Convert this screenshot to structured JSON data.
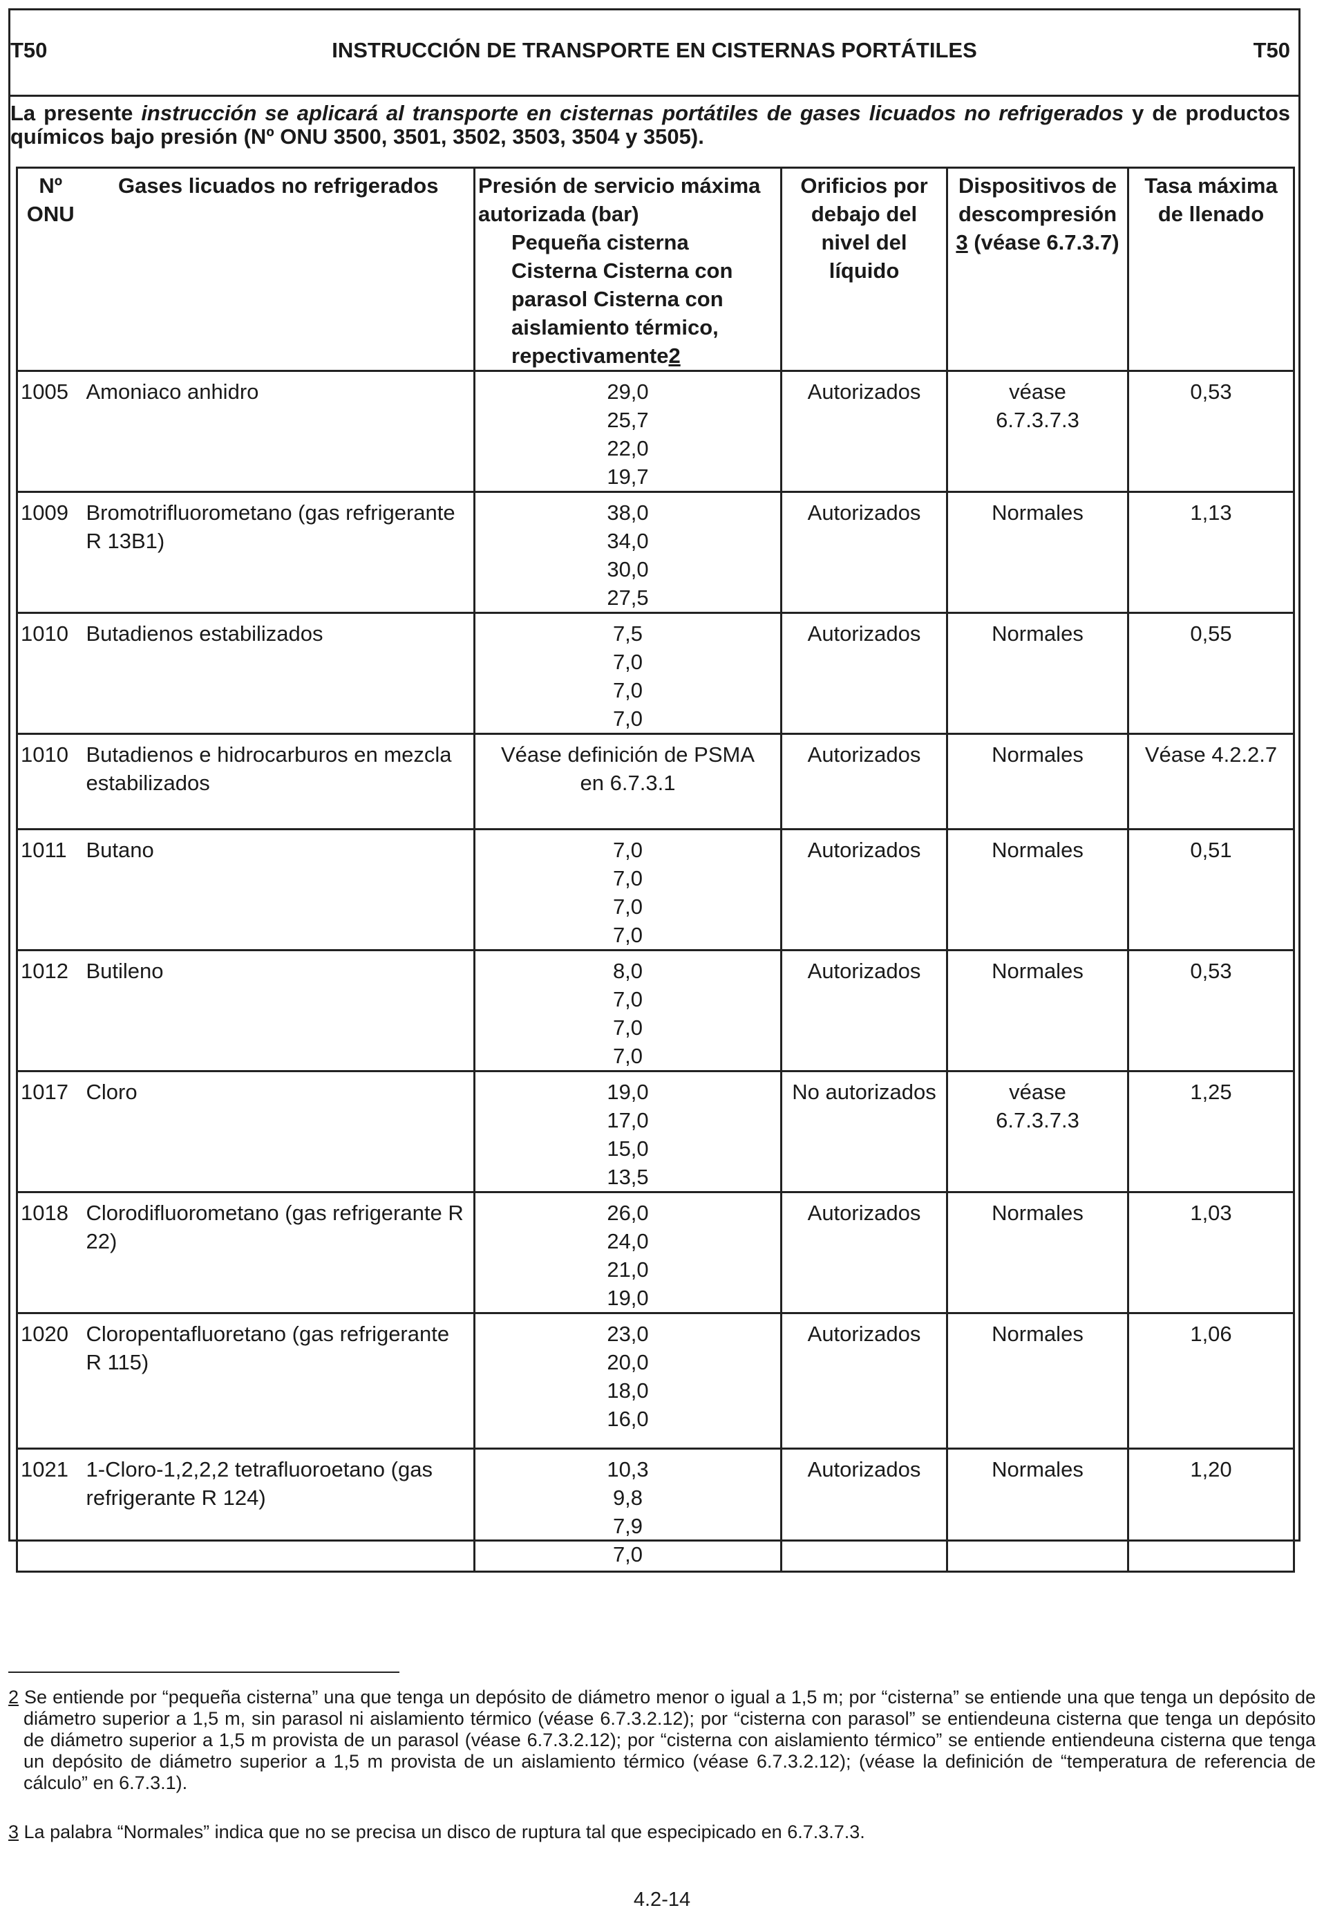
{
  "header": {
    "code_left": "T50",
    "title": "INSTRUCCIÓN DE TRANSPORTE EN CISTERNAS PORTÁTILES",
    "code_right": "T50"
  },
  "intro": {
    "part1": "La presente ",
    "part2_italic": "instrucción se aplicará al transporte en cisternas portátiles de gases licuados no refrigerados",
    "part3": " y de productos químicos bajo presión  (Nº ONU 3500, 3501, 3502, 3503, 3504 y 3505)."
  },
  "columns": {
    "onu": "Nº ONU",
    "gases": "Gases licuados no refrigerados",
    "pres_main": "Presión de servicio máxima autorizada (bar)",
    "pres_sub": "Pequeña cisterna Cisterna Cisterna con parasol Cisterna con aislamiento térmico, repectivamente",
    "pres_note": "2",
    "orificios": "Orificios por debajo del nivel del líquido",
    "disp_main": "Dispositivos de descompresión",
    "disp_note": "3",
    "disp_tail": " (véase 6.7.3.7)",
    "tasa": "Tasa máxima de llenado"
  },
  "rows": [
    {
      "onu": "1005",
      "name": "Amoniaco anhidro",
      "pres": [
        "29,0",
        "25,7",
        "22,0",
        "19,7"
      ],
      "orificios": "Autorizados",
      "disp": [
        "véase",
        "6.7.3.7.3"
      ],
      "tasa": "0,53"
    },
    {
      "onu": "1009",
      "name": "Bromotrifluorometano (gas refrigerante R 13B1)",
      "pres": [
        "38,0",
        "34,0",
        "30,0",
        "27,5"
      ],
      "orificios": "Autorizados",
      "disp": [
        "Normales"
      ],
      "tasa": "1,13"
    },
    {
      "onu": "1010",
      "name": "Butadienos estabilizados",
      "pres": [
        "7,5",
        "7,0",
        "7,0",
        "7,0"
      ],
      "orificios": "Autorizados",
      "disp": [
        "Normales"
      ],
      "tasa": "0,55"
    },
    {
      "onu": "1010",
      "name": "Butadienos e hidrocarburos en mezcla estabilizados",
      "pres": [
        "Véase definición de PSMA",
        "en 6.7.3.1"
      ],
      "orificios": "Autorizados",
      "disp": [
        "Normales"
      ],
      "tasa": "Véase 4.2.2.7"
    },
    {
      "onu": "1011",
      "name": "Butano",
      "pres": [
        "7,0",
        "7,0",
        "7,0",
        "7,0"
      ],
      "orificios": "Autorizados",
      "disp": [
        "Normales"
      ],
      "tasa": "0,51"
    },
    {
      "onu": "1012",
      "name": "Butileno",
      "pres": [
        "8,0",
        "7,0",
        "7,0",
        "7,0"
      ],
      "orificios": "Autorizados",
      "disp": [
        "Normales"
      ],
      "tasa": "0,53"
    },
    {
      "onu": "1017",
      "name": "Cloro",
      "pres": [
        "19,0",
        "17,0",
        "15,0",
        "13,5"
      ],
      "orificios": "No autorizados",
      "disp": [
        "véase",
        "6.7.3.7.3"
      ],
      "tasa": "1,25"
    },
    {
      "onu": "1018",
      "name": "Clorodifluorometano (gas refrigerante R 22)",
      "pres": [
        "26,0",
        "24,0",
        "21,0",
        "19,0"
      ],
      "orificios": "Autorizados",
      "disp": [
        "Normales"
      ],
      "tasa": "1,03"
    },
    {
      "onu": "1020",
      "name": "Cloropentafluoretano (gas refrigerante R 115)",
      "pres": [
        "23,0",
        "20,0",
        "18,0",
        "16,0"
      ],
      "orificios": "Autorizados",
      "disp": [
        "Normales"
      ],
      "tasa": "1,06"
    },
    {
      "onu": "1021",
      "name": "1-Cloro-1,2,2,2 tetrafluoroetano (gas refrigerante R 124)",
      "pres": [
        "10,3",
        "9,8",
        "7,9",
        "7,0"
      ],
      "orificios": "Autorizados",
      "disp": [
        "Normales"
      ],
      "tasa": "1,20"
    }
  ],
  "footnotes": [
    {
      "mark": "2",
      "text": " Se entiende por “pequeña cisterna” una que tenga un depósito de diámetro menor o igual a 1,5 m; por “cisterna” se entiende una que tenga un depósito de diámetro superior a 1,5 m, sin parasol ni aislamiento térmico (véase 6.7.3.2.12); por “cisterna con parasol” se entiendeuna cisterna que tenga un depósito de diámetro superior a 1,5 m provista de un parasol (véase 6.7.3.2.12); por “cisterna con aislamiento térmico” se entiende entiendeuna cisterna que tenga un depósito de diámetro superior a 1,5 m provista de un aislamiento térmico (véase 6.7.3.2.12); (véase la definición de “temperatura de referencia de cálculo” en 6.7.3.1)."
    },
    {
      "mark": "3",
      "text": " La palabra “Normales” indica que no se precisa un disco de ruptura tal que especipicado en 6.7.3.7.3."
    }
  ],
  "page_number": "4.2-14"
}
